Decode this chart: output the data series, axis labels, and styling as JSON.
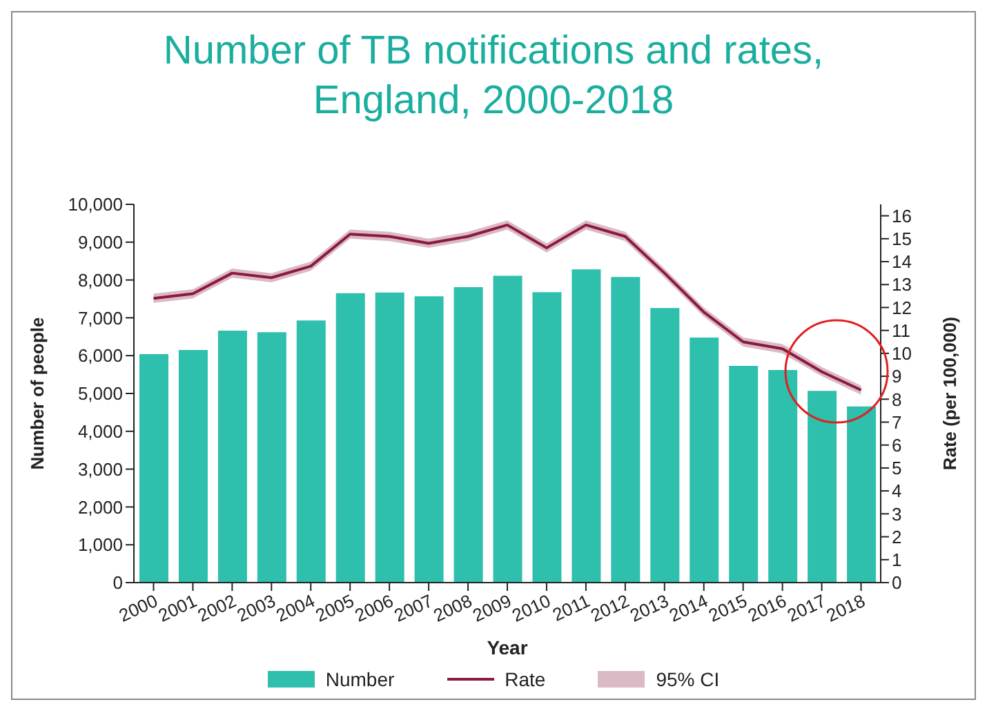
{
  "chart_data": {
    "type": "bar",
    "title": "Number of TB notifications and rates, England, 2000-2018",
    "xlabel": "Year",
    "ylabel": "Number of people",
    "y2label": "Rate (per 100,000)",
    "categories": [
      "2000",
      "2001",
      "2002",
      "2003",
      "2004",
      "2005",
      "2006",
      "2007",
      "2008",
      "2009",
      "2010",
      "2011",
      "2012",
      "2013",
      "2014",
      "2015",
      "2016",
      "2017",
      "2018"
    ],
    "series": [
      {
        "name": "Number",
        "color": "#2ebfad",
        "values": [
          6040,
          6150,
          6660,
          6620,
          6930,
          7650,
          7670,
          7570,
          7810,
          8110,
          7680,
          8280,
          8080,
          7260,
          6480,
          5730,
          5620,
          5070,
          4660
        ]
      },
      {
        "name": "Rate",
        "type": "line",
        "axis": "y2",
        "color": "#8b1a3e",
        "values": [
          12.4,
          12.6,
          13.5,
          13.3,
          13.8,
          15.2,
          15.1,
          14.8,
          15.1,
          15.6,
          14.6,
          15.6,
          15.1,
          13.5,
          11.8,
          10.5,
          10.2,
          9.2,
          8.4
        ],
        "lower": [
          12.2,
          12.4,
          13.3,
          13.1,
          13.6,
          15.0,
          14.9,
          14.6,
          14.9,
          15.4,
          14.4,
          15.4,
          14.9,
          13.3,
          11.6,
          10.3,
          10.0,
          9.0,
          8.2
        ],
        "upper": [
          12.6,
          12.8,
          13.7,
          13.5,
          14.0,
          15.4,
          15.3,
          15.0,
          15.3,
          15.8,
          14.8,
          15.8,
          15.3,
          13.7,
          12.0,
          10.7,
          10.4,
          9.4,
          8.6
        ]
      }
    ],
    "annotations": [
      "95% CI"
    ],
    "ylim": [
      0,
      10000
    ],
    "yticks": [
      0,
      {
        "value": 1000,
        "label": "1,000"
      },
      {
        "value": 2000,
        "label": "2,000"
      },
      {
        "value": 3000,
        "label": "3,000"
      },
      {
        "value": 4000,
        "label": "4,000"
      },
      {
        "value": 5000,
        "label": "5,000"
      },
      {
        "value": 6000,
        "label": "6,000"
      },
      {
        "value": 7000,
        "label": "7,000"
      },
      {
        "value": 8000,
        "label": "8,000"
      },
      {
        "value": 9000,
        "label": "9,000"
      },
      {
        "value": 10000,
        "label": "10,000"
      }
    ],
    "y2lim": [
      0,
      16.5
    ],
    "y2ticks": [
      0,
      1,
      2,
      3,
      4,
      5,
      6,
      7,
      8,
      9,
      10,
      11,
      12,
      13,
      14,
      15,
      16
    ],
    "grid": false,
    "legend": "bottom",
    "marker": "none",
    "line_style": "solid"
  }
}
